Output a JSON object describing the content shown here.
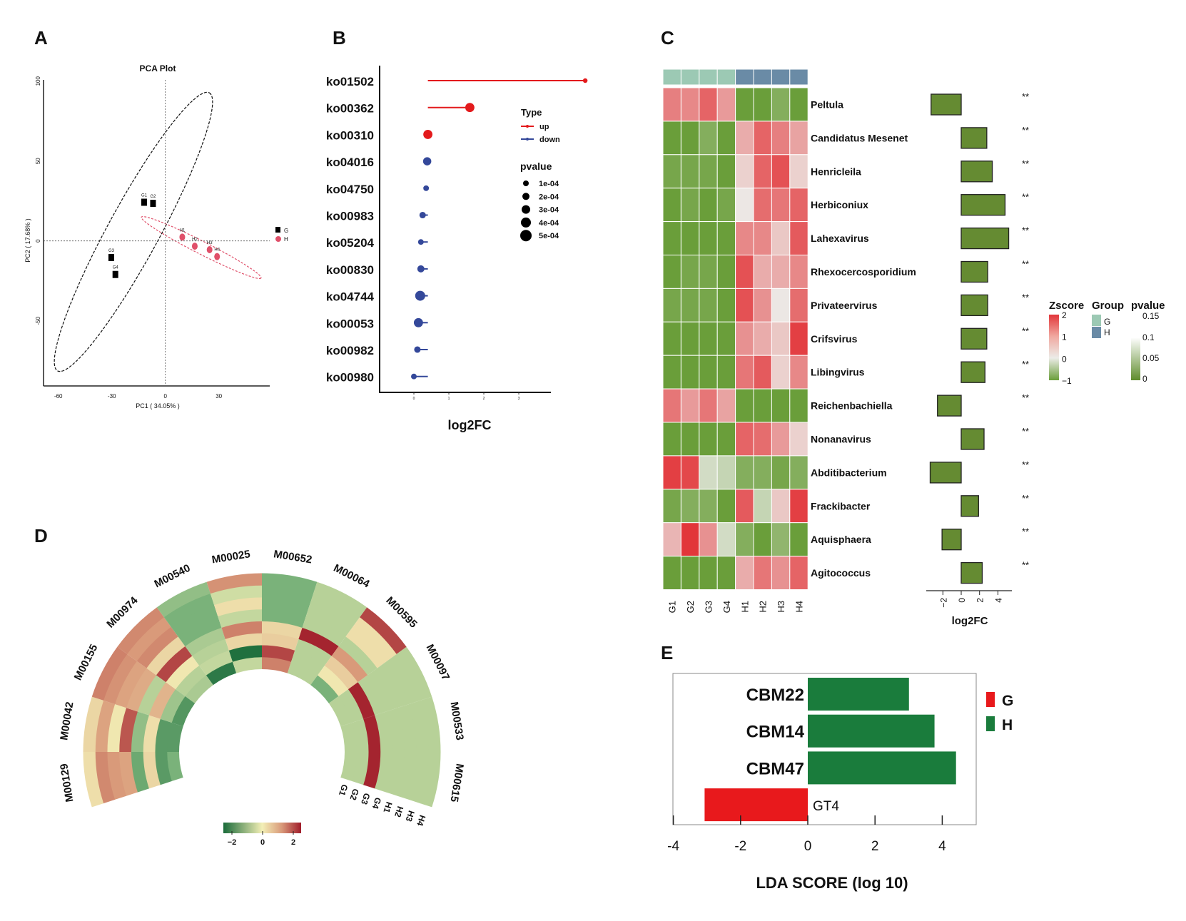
{
  "panels": {
    "a": "A",
    "b": "B",
    "c": "C",
    "d": "D",
    "e": "E"
  },
  "chart_data": [
    {
      "id": "pca",
      "type": "scatter",
      "title": "PCA Plot",
      "xlabel": "PC1 ( 34.05% )",
      "ylabel": "PC2 ( 17.68% )",
      "xlim": [
        -62,
        58
      ],
      "ylim": [
        -90,
        102
      ],
      "xticks": [
        -60,
        -30,
        0,
        30
      ],
      "yticks": [
        100,
        50,
        0,
        -50
      ],
      "legend": [
        {
          "label": "G",
          "color": "#000000",
          "shape": "square"
        },
        {
          "label": "H",
          "color": "#e0506a",
          "shape": "circle"
        }
      ],
      "points": [
        {
          "label": "G1",
          "group": "G",
          "x": -11.9,
          "y": 24.2
        },
        {
          "label": "G2",
          "group": "G",
          "x": -6.9,
          "y": 23.5
        },
        {
          "label": "G3",
          "group": "G",
          "x": -30.3,
          "y": -10.4
        },
        {
          "label": "G4",
          "group": "G",
          "x": -28.0,
          "y": -21.0
        },
        {
          "label": "H1",
          "group": "H",
          "x": 9.5,
          "y": 2.4
        },
        {
          "label": "H2",
          "group": "H",
          "x": 16.5,
          "y": -3.3
        },
        {
          "label": "H3",
          "group": "H",
          "x": 24.8,
          "y": -5.5
        },
        {
          "label": "H4",
          "group": "H",
          "x": 29.0,
          "y": -9.8
        }
      ]
    },
    {
      "id": "lollipop",
      "type": "scatter",
      "xlabel": "log2FC",
      "xticks": [
        0,
        1,
        2,
        3
      ],
      "legend_type_title": "Type",
      "legend_types": [
        {
          "label": "up",
          "color": "#e31a1c"
        },
        {
          "label": "down",
          "color": "#34489a"
        }
      ],
      "legend_size_title": "pvalue",
      "legend_sizes": [
        "1e-04",
        "2e-04",
        "3e-04",
        "4e-04",
        "5e-04"
      ],
      "baseline": 0.4,
      "rows": [
        {
          "label": "ko01502",
          "log2fc": 4.9,
          "type": "up",
          "pvalue": 5e-05
        },
        {
          "label": "ko00362",
          "log2fc": 1.6,
          "type": "up",
          "pvalue": 0.0004
        },
        {
          "label": "ko00310",
          "log2fc": 0.4,
          "type": "up",
          "pvalue": 0.0004
        },
        {
          "label": "ko04016",
          "log2fc": 0.38,
          "type": "down",
          "pvalue": 0.0003
        },
        {
          "label": "ko04750",
          "log2fc": 0.35,
          "type": "down",
          "pvalue": 0.0001
        },
        {
          "label": "ko00983",
          "log2fc": 0.25,
          "type": "down",
          "pvalue": 0.00015
        },
        {
          "label": "ko05204",
          "log2fc": 0.2,
          "type": "down",
          "pvalue": 0.0001
        },
        {
          "label": "ko00830",
          "log2fc": 0.2,
          "type": "down",
          "pvalue": 0.0002
        },
        {
          "label": "ko04744",
          "log2fc": 0.18,
          "type": "down",
          "pvalue": 0.0005
        },
        {
          "label": "ko00053",
          "log2fc": 0.13,
          "type": "down",
          "pvalue": 0.0004
        },
        {
          "label": "ko00982",
          "log2fc": 0.1,
          "type": "down",
          "pvalue": 0.00015
        },
        {
          "label": "ko00980",
          "log2fc": 0.0,
          "type": "down",
          "pvalue": 0.0001
        }
      ]
    },
    {
      "id": "heatmap",
      "type": "heatmap",
      "columns": [
        "G1",
        "G2",
        "G3",
        "G4",
        "H1",
        "H2",
        "H3",
        "H4"
      ],
      "column_groups": [
        "G",
        "G",
        "G",
        "G",
        "H",
        "H",
        "H",
        "H"
      ],
      "group_colors": {
        "G": "#9cc9b4",
        "H": "#6a8ba6"
      },
      "legend_zscore_title": "Zscore",
      "zscore_ticks": [
        "2",
        "1",
        "0",
        "−1"
      ],
      "legend_group_title": "Group",
      "legend_pvalue_title": "pvalue",
      "pvalue_ticks": [
        "0.15",
        "0.1",
        "0.05",
        "0"
      ],
      "bar_xlabel": "log2FC",
      "bar_xticks": [
        "−2",
        "0",
        "2",
        "4"
      ],
      "bar_color": "#658b32",
      "rows": [
        {
          "label": "Peltula",
          "sig": "**",
          "log2fc": -3.3,
          "z": [
            1.2,
            1.1,
            1.5,
            0.9,
            -1,
            -1,
            -0.8,
            -1
          ]
        },
        {
          "label": "Candidatus Mesenet",
          "sig": "**",
          "log2fc": 2.8,
          "z": [
            -1,
            -1,
            -0.8,
            -1,
            0.7,
            1.5,
            1.2,
            0.8
          ]
        },
        {
          "label": "Henricleila",
          "sig": "**",
          "log2fc": 3.4,
          "z": [
            -0.9,
            -0.9,
            -0.9,
            -1,
            0.3,
            1.5,
            1.7,
            0.3
          ]
        },
        {
          "label": "Herbiconiux",
          "sig": "**",
          "log2fc": 4.8,
          "z": [
            -1,
            -0.9,
            -1,
            -0.9,
            0.05,
            1.4,
            1.3,
            1.5
          ]
        },
        {
          "label": "Lahexavirus",
          "sig": "**",
          "log2fc": 5.2,
          "z": [
            -1,
            -1,
            -1,
            -1,
            1.1,
            1.1,
            0.4,
            1.6
          ]
        },
        {
          "label": "Rhexocercosporidium",
          "sig": "**",
          "log2fc": 2.9,
          "z": [
            -1,
            -0.9,
            -0.9,
            -1,
            1.7,
            0.7,
            0.7,
            1.1
          ]
        },
        {
          "label": "Privateervirus",
          "sig": "**",
          "log2fc": 2.9,
          "z": [
            -0.9,
            -0.9,
            -0.9,
            -1,
            1.7,
            1.0,
            0.05,
            1.4
          ]
        },
        {
          "label": "Crifsvirus",
          "sig": "**",
          "log2fc": 2.8,
          "z": [
            -1,
            -1,
            -1,
            -1,
            1.0,
            0.7,
            0.4,
            1.9
          ]
        },
        {
          "label": "Libingvirus",
          "sig": "**",
          "log2fc": 2.6,
          "z": [
            -1,
            -1,
            -1,
            -1,
            1.3,
            1.6,
            0.3,
            1.1
          ]
        },
        {
          "label": "Reichenbachiella",
          "sig": "**",
          "log2fc": -2.6,
          "z": [
            1.3,
            0.9,
            1.3,
            0.8,
            -1,
            -1,
            -1,
            -1
          ]
        },
        {
          "label": "Nonanavirus",
          "sig": "**",
          "log2fc": 2.5,
          "z": [
            -1,
            -1,
            -1,
            -1,
            1.5,
            1.4,
            0.9,
            0.3
          ]
        },
        {
          "label": "Abditibacterium",
          "sig": "**",
          "log2fc": -3.4,
          "z": [
            1.9,
            1.8,
            -0.2,
            -0.3,
            -0.8,
            -0.8,
            -0.9,
            -0.8
          ]
        },
        {
          "label": "Frackibacter",
          "sig": "**",
          "log2fc": 1.9,
          "z": [
            -0.9,
            -0.8,
            -0.8,
            -1,
            1.6,
            -0.3,
            0.4,
            1.9
          ]
        },
        {
          "label": "Aquisphaera",
          "sig": "**",
          "log2fc": -2.1,
          "z": [
            0.6,
            2.0,
            1.0,
            -0.2,
            -0.8,
            -1,
            -0.7,
            -1
          ]
        },
        {
          "label": "Agitococcus",
          "sig": "**",
          "log2fc": 2.3,
          "z": [
            -1,
            -1,
            -1,
            -1,
            0.7,
            1.3,
            1.0,
            1.5
          ]
        }
      ]
    },
    {
      "id": "circular-heatmap",
      "type": "heatmap",
      "rings": [
        "G1",
        "G2",
        "G3",
        "G4",
        "H1",
        "H2",
        "H3",
        "H4"
      ],
      "colorbar_ticks": [
        "−2",
        "0",
        "2"
      ],
      "colorbar_range": [
        -2.5,
        2.5
      ],
      "modules": [
        {
          "label": "M00129",
          "z": [
            -1.0,
            -1.5,
            0.3,
            -1.2,
            0.9,
            1.0,
            1.2,
            0.2
          ]
        },
        {
          "label": "M00042",
          "z": [
            -1.5,
            -1.5,
            0.2,
            -0.8,
            1.8,
            0.1,
            0.9,
            0.3
          ]
        },
        {
          "label": "M00155",
          "z": [
            -1.6,
            -0.7,
            0.7,
            -0.5,
            0.8,
            0.9,
            1.1,
            1.3
          ]
        },
        {
          "label": "M00974",
          "z": [
            -0.6,
            -0.5,
            0.1,
            2.0,
            0.3,
            1.2,
            1.0,
            1.2
          ]
        },
        {
          "label": "M00540",
          "z": [
            -2.2,
            -0.4,
            -0.5,
            -0.6,
            -1.0,
            -1.0,
            -1.0,
            -0.8
          ]
        },
        {
          "label": "M00025",
          "z": [
            -0.4,
            -2.4,
            0.3,
            1.3,
            -0.4,
            0.2,
            -0.3,
            1.1
          ]
        },
        {
          "label": "M00652",
          "z": [
            1.3,
            2.0,
            0.4,
            0.3,
            -1.0,
            -1.0,
            -1.0,
            -1.0
          ]
        },
        {
          "label": "M00064",
          "z": [
            -0.5,
            -0.5,
            -0.5,
            2.4,
            -0.5,
            -0.5,
            -0.5,
            -0.5
          ]
        },
        {
          "label": "M00595",
          "z": [
            -1.0,
            0.1,
            0.4,
            1.0,
            -0.5,
            0.2,
            0.2,
            2.0
          ]
        },
        {
          "label": "M00097",
          "z": [
            -0.5,
            -0.5,
            2.4,
            -0.5,
            -0.5,
            -0.5,
            -0.5,
            -0.5
          ]
        },
        {
          "label": "M00533",
          "z": [
            -0.5,
            -0.5,
            2.4,
            -0.5,
            -0.5,
            -0.5,
            -0.5,
            -0.5
          ]
        },
        {
          "label": "M00615",
          "z": [
            -0.5,
            -0.5,
            2.4,
            -0.5,
            -0.5,
            -0.5,
            -0.5,
            -0.5
          ]
        }
      ]
    },
    {
      "id": "lefse",
      "type": "bar",
      "xlabel": "LDA SCORE (log 10)",
      "xlim": [
        -4,
        5
      ],
      "xticks": [
        -4,
        -2,
        0,
        2,
        4
      ],
      "legend": [
        {
          "label": "G",
          "color": "#e8191c"
        },
        {
          "label": "H",
          "color": "#1a7c3c"
        }
      ],
      "bars": [
        {
          "label": "CBM22",
          "value": 3.01,
          "group": "H"
        },
        {
          "label": "CBM14",
          "value": 3.77,
          "group": "H"
        },
        {
          "label": "CBM47",
          "value": 4.41,
          "group": "H"
        },
        {
          "label": "GT4",
          "value": -3.07,
          "group": "G"
        }
      ]
    }
  ]
}
